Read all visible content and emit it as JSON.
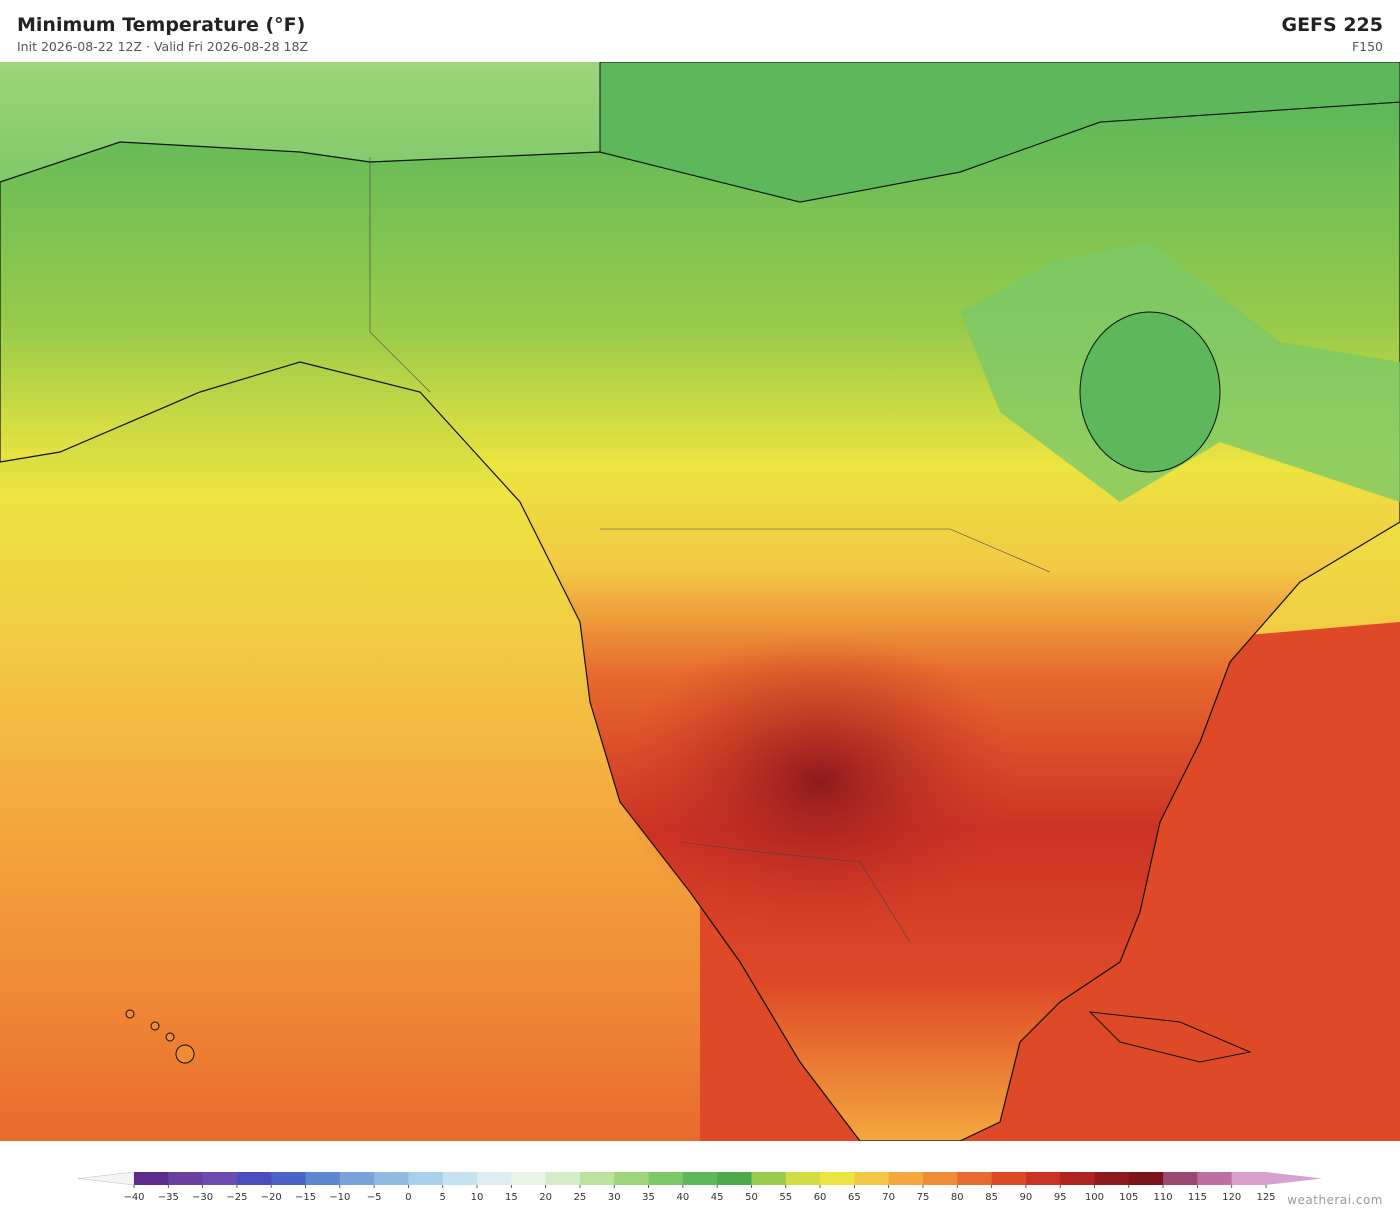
{
  "header": {
    "title": "Minimum Temperature  (°F)",
    "subtitle": "Init 2026-08-22 12Z   ·   Valid Fri 2026-08-28 18Z",
    "model": "GEFS  225",
    "forecast_hour": "F150"
  },
  "colorbar": {
    "ticks": [
      {
        "value": -40,
        "label": "−40"
      },
      {
        "value": -35,
        "label": "−35"
      },
      {
        "value": -30,
        "label": "−30"
      },
      {
        "value": -25,
        "label": "−25"
      },
      {
        "value": -20,
        "label": "−20"
      },
      {
        "value": -15,
        "label": "−15"
      },
      {
        "value": -10,
        "label": "−10"
      },
      {
        "value": -5,
        "label": "−5"
      },
      0,
      5,
      10,
      15,
      20,
      25,
      30,
      35,
      40,
      45,
      50,
      55,
      60,
      65,
      70,
      75,
      80,
      85,
      90,
      95,
      100,
      105,
      110,
      115,
      120,
      125
    ],
    "colors": [
      "#5b2a8c",
      "#6a3fa0",
      "#6e4bb0",
      "#4b4cc0",
      "#4a62c8",
      "#5b86d0",
      "#7aa2d8",
      "#8fbbe0",
      "#a8d0ea",
      "#c4e2f0",
      "#dcecf2",
      "#e8f4e8",
      "#d4ecc8",
      "#bde29e",
      "#9fd47c",
      "#7cc868",
      "#5cb85a",
      "#4caa4c",
      "#9acb4a",
      "#d2dc44",
      "#ece440",
      "#f2c844",
      "#f4a83e",
      "#f08c36",
      "#e86a2e",
      "#de4a28",
      "#cc3224",
      "#b02420",
      "#8e1a1e",
      "#7a1418",
      "#9a4a70",
      "#be6ea0",
      "#dca0cc"
    ],
    "under_color": "#f4f4f4",
    "over_color": "#d8a0d0"
  },
  "credit": "weatherai.com"
}
